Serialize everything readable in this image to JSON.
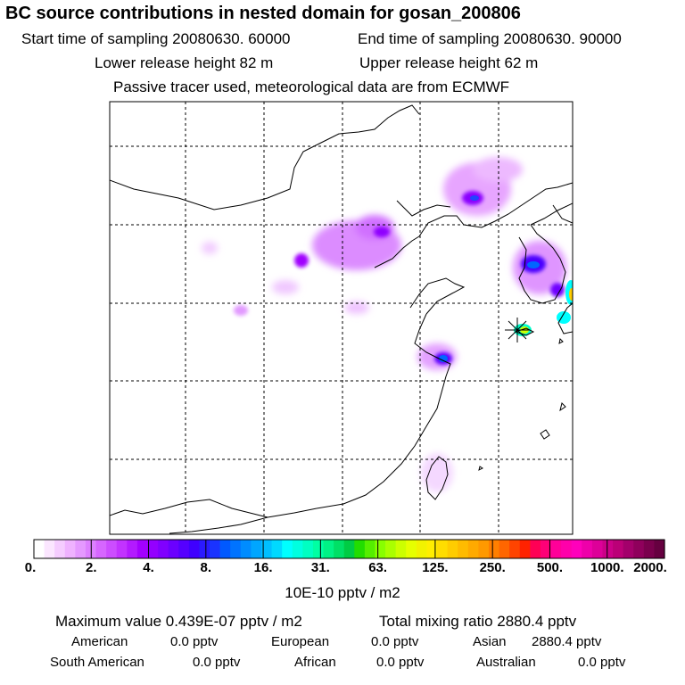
{
  "header": {
    "title": "BC  source contributions in nested domain for gosan_200806",
    "start_time": "Start time of sampling 20080630. 60000",
    "end_time": "End time of sampling 20080630. 90000",
    "lower_release": "Lower release height   82 m",
    "upper_release": "Upper release height   62 m",
    "tracer_note": "Passive tracer used, meteorological data are from ECMWF"
  },
  "chart_data": {
    "type": "heatmap",
    "title": "BC  source contributions in nested domain for gosan_200806",
    "colorbar_label": "10E-10 pptv / m2",
    "colorbar_ticks": [
      "0.",
      "2.",
      "4.",
      "8.",
      "16.",
      "31.",
      "63.",
      "125.",
      "250.",
      "500.",
      "1000.",
      "2000."
    ],
    "colorbar_colors": [
      "#ffffff",
      "#fbe6ff",
      "#f5ccff",
      "#efb2ff",
      "#e599ff",
      "#dd80ff",
      "#d666ff",
      "#cc4dff",
      "#c233ff",
      "#b31aff",
      "#a300ff",
      "#9400ff",
      "#8000ff",
      "#6b00ff",
      "#5500ff",
      "#3f00ff",
      "#2b1aff",
      "#1a33ff",
      "#0059ff",
      "#0073ff",
      "#008cff",
      "#00a6ff",
      "#00bfff",
      "#00d9ff",
      "#00ffff",
      "#00ffe0",
      "#00ffc2",
      "#00ffa3",
      "#00f285",
      "#00e066",
      "#00cc44",
      "#22dd00",
      "#55ee00",
      "#88ff00",
      "#aaff00",
      "#ccff00",
      "#e6ff00",
      "#f2f200",
      "#ffee00",
      "#ffdd00",
      "#ffcc00",
      "#ffbb00",
      "#ffaa00",
      "#ff9900",
      "#ff7f00",
      "#ff6600",
      "#ff4400",
      "#ff2200",
      "#ff0055",
      "#ff0077",
      "#ff0099",
      "#ff00aa",
      "#ff00bb",
      "#ee00aa",
      "#dd0099",
      "#cc0088",
      "#bb0077",
      "#a3006b",
      "#8f005c",
      "#7a004d",
      "#660040"
    ],
    "grid": true,
    "receptor": "gosan"
  },
  "stats": {
    "max_value": "Maximum value  0.439E-07 pptv / m2",
    "total_mixing": "Total mixing ratio     2880.4 pptv",
    "american_label": "American",
    "american_value": "0.0 pptv",
    "european_label": "European",
    "european_value": "0.0 pptv",
    "asian_label": "Asian",
    "asian_value": "2880.4 pptv",
    "south_american_label": "South American",
    "south_american_value": "0.0 pptv",
    "african_label": "African",
    "african_value": "0.0 pptv",
    "australian_label": "Australian",
    "australian_value": "0.0 pptv"
  }
}
